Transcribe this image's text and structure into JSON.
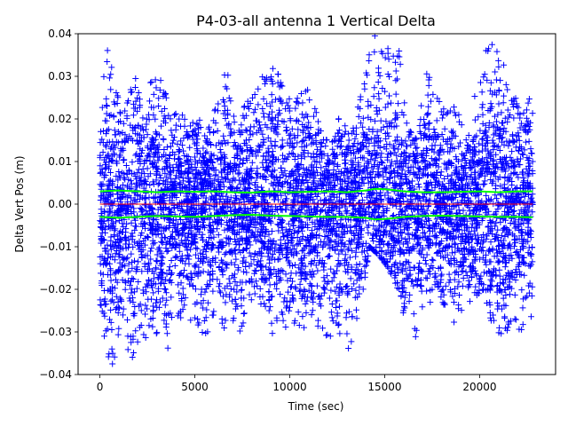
{
  "chart_data": {
    "type": "scatter",
    "title": "P4-03-all antenna 1 Vertical Delta",
    "xlabel": "Time (sec)",
    "ylabel": "Delta Vert Pos (m)",
    "xlim": [
      -1150,
      24000
    ],
    "ylim": [
      -0.04,
      0.04
    ],
    "x_ticks": [
      0,
      5000,
      10000,
      15000,
      20000
    ],
    "y_ticks": [
      -0.04,
      -0.03,
      -0.02,
      -0.01,
      0.0,
      0.01,
      0.02,
      0.03,
      0.04
    ],
    "x_tick_labels": [
      "0",
      "5000",
      "10000",
      "15000",
      "20000"
    ],
    "y_tick_labels": [
      "−0.04",
      "−0.03",
      "−0.02",
      "−0.01",
      "0.00",
      "0.01",
      "0.02",
      "0.03",
      "0.04"
    ],
    "grid": false,
    "x_range": [
      0,
      22800
    ],
    "series": [
      {
        "marker": "+",
        "color": "#0000ff",
        "envelope": {
          "x": [
            0,
            300,
            700,
            1200,
            1700,
            2200,
            2700,
            3200,
            3700,
            4200,
            4700,
            5200,
            5700,
            6200,
            6700,
            7200,
            7700,
            8200,
            8700,
            9200,
            9700,
            10200,
            10700,
            11200,
            11700,
            12200,
            12700,
            13200,
            13700,
            14200,
            14700,
            15200,
            15700,
            16200,
            16700,
            17200,
            17700,
            18200,
            18700,
            19200,
            19700,
            20200,
            20700,
            21200,
            21700,
            22200,
            22800
          ],
          "upper": [
            0.02,
            0.04,
            0.03,
            0.02,
            0.035,
            0.022,
            0.029,
            0.032,
            0.02,
            0.022,
            0.018,
            0.021,
            0.02,
            0.023,
            0.033,
            0.018,
            0.024,
            0.027,
            0.031,
            0.032,
            0.028,
            0.022,
            0.029,
            0.025,
            0.016,
            0.014,
            0.022,
            0.015,
            0.025,
            0.04,
            0.04,
            0.04,
            0.04,
            0.018,
            0.015,
            0.033,
            0.028,
            0.021,
            0.023,
            0.018,
            0.025,
            0.038,
            0.04,
            0.039,
            0.028,
            0.02,
            0.027
          ],
          "lower": [
            -0.025,
            -0.035,
            -0.04,
            -0.03,
            -0.04,
            -0.034,
            -0.036,
            -0.033,
            -0.038,
            -0.03,
            -0.027,
            -0.032,
            -0.03,
            -0.027,
            -0.032,
            -0.031,
            -0.028,
            -0.022,
            -0.026,
            -0.032,
            -0.03,
            -0.029,
            -0.031,
            -0.027,
            -0.03,
            -0.033,
            -0.036,
            -0.034,
            -0.025,
            -0.01,
            -0.012,
            -0.015,
            -0.02,
            -0.03,
            -0.032,
            -0.025,
            -0.02,
            -0.025,
            -0.028,
            -0.024,
            -0.022,
            -0.02,
            -0.029,
            -0.032,
            -0.028,
            -0.03,
            -0.026
          ]
        }
      },
      {
        "color": "#00ff00",
        "x": [
          0,
          1000,
          2000,
          3000,
          4000,
          5000,
          6000,
          7000,
          8000,
          9000,
          10000,
          11000,
          12000,
          13000,
          14000,
          14500,
          15000,
          15500,
          16000,
          17000,
          18000,
          19000,
          20000,
          21000,
          22000,
          22800
        ],
        "y": [
          0.003,
          0.0032,
          0.003,
          0.0028,
          0.003,
          0.0029,
          0.003,
          0.0028,
          0.0027,
          0.003,
          0.0028,
          0.0029,
          0.003,
          0.0028,
          0.0032,
          0.0036,
          0.0035,
          0.0033,
          0.003,
          0.0028,
          0.0028,
          0.0029,
          0.003,
          0.0028,
          0.003,
          0.003
        ]
      },
      {
        "color": "#00ff00",
        "x": [
          0,
          1000,
          2000,
          3000,
          4000,
          5000,
          6000,
          7000,
          8000,
          9000,
          10000,
          11000,
          12000,
          13000,
          14000,
          14500,
          15000,
          15500,
          16000,
          17000,
          18000,
          19000,
          20000,
          21000,
          22000,
          22800
        ],
        "y": [
          -0.003,
          -0.0032,
          -0.003,
          -0.0028,
          -0.0029,
          -0.003,
          -0.0028,
          -0.0026,
          -0.0025,
          -0.0027,
          -0.0028,
          -0.0029,
          -0.003,
          -0.003,
          -0.0032,
          -0.0036,
          -0.0035,
          -0.0033,
          -0.003,
          -0.0028,
          -0.0027,
          -0.0028,
          -0.0029,
          -0.003,
          -0.003,
          -0.0031
        ]
      },
      {
        "color": "#ff0000",
        "x": [
          0,
          22800
        ],
        "y": [
          0.0,
          0.0
        ]
      }
    ]
  }
}
